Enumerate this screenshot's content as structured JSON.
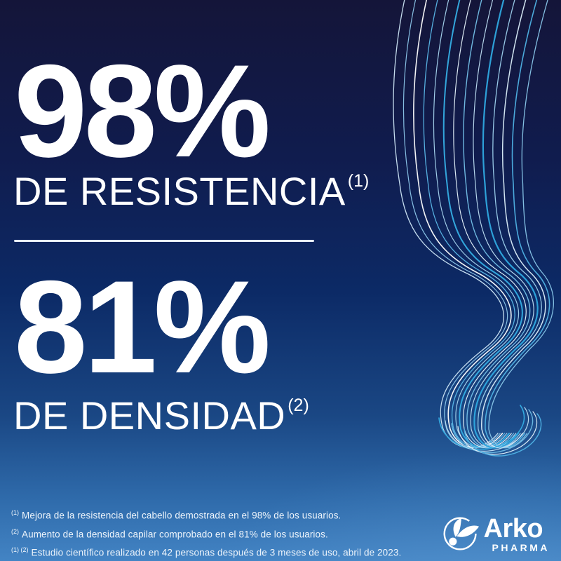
{
  "colors": {
    "background_top": "#141539",
    "background_mid": "#0c2a66",
    "background_bottom": "#4384c4",
    "text": "#ffffff",
    "hair_accent": "#2fb3e8"
  },
  "stats": [
    {
      "value": "98%",
      "label": "DE RESISTENCIA",
      "ref": "(1)"
    },
    {
      "value": "81%",
      "label": "DE DENSIDAD",
      "ref": "(2)"
    }
  ],
  "footnotes": [
    {
      "ref": "(1)",
      "text": "Mejora de la resistencia del cabello demostrada en el 98% de los usuarios."
    },
    {
      "ref": "(2)",
      "text": "Aumento de la densidad capilar comprobado en el 81% de los usuarios."
    },
    {
      "ref": "(1) (2)",
      "text": "Estudio científico realizado en 42 personas después de 3 meses de uso, abril de 2023."
    }
  ],
  "brand": {
    "name": "Arko",
    "subname": "PHARMA"
  }
}
